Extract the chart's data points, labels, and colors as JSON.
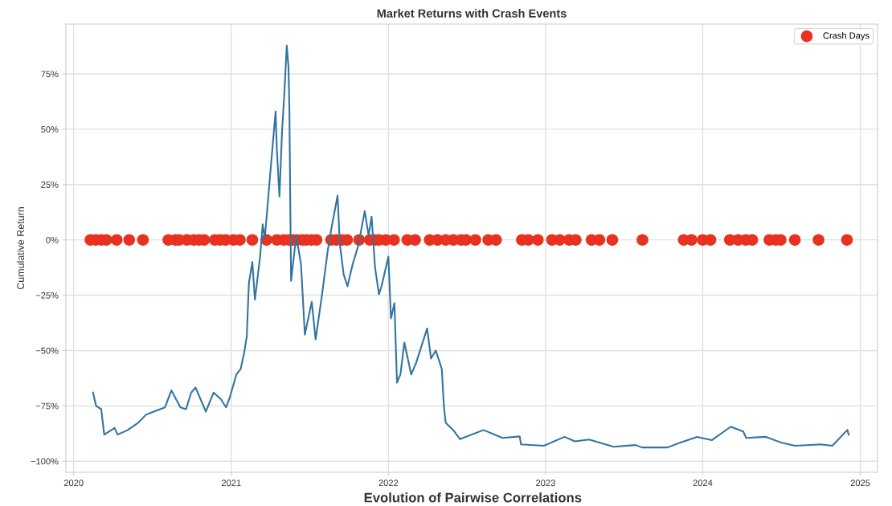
{
  "chart_data": {
    "type": "line",
    "title": "Market Returns with Crash Events",
    "ylabel": "Cumulative Return",
    "annotations": [
      "Evolution of Pairwise Correlations"
    ],
    "xlim": [
      "2019-12-14",
      "2025-02-10"
    ],
    "xticks": [
      "2020",
      "2021",
      "2022",
      "2023",
      "2024",
      "2025"
    ],
    "ylim": [
      -105,
      97.5
    ],
    "yticks": [
      {
        "value": -100,
        "label": "−100%"
      },
      {
        "value": -75,
        "label": "−75%"
      },
      {
        "value": -50,
        "label": "−50%"
      },
      {
        "value": -25,
        "label": "−25%"
      },
      {
        "value": 0,
        "label": "0%"
      },
      {
        "value": 25,
        "label": "25%"
      },
      {
        "value": 50,
        "label": "50%"
      },
      {
        "value": 75,
        "label": "75%"
      }
    ],
    "grid": true,
    "legend": "top right",
    "series": [
      {
        "color": "#3274a1",
        "marker": "none",
        "line_style": "solid",
        "x": [
          "2020-02-15",
          "2020-02-22",
          "2020-03-05",
          "2020-03-12",
          "2020-04-05",
          "2020-04-12",
          "2020-05-05",
          "2020-05-30",
          "2020-06-17",
          "2020-07-05",
          "2020-07-31",
          "2020-08-15",
          "2020-09-05",
          "2020-09-18",
          "2020-09-30",
          "2020-10-10",
          "2020-11-03",
          "2020-11-21",
          "2020-12-08",
          "2020-12-20",
          "2020-12-28",
          "2021-01-13",
          "2021-01-23",
          "2021-01-31",
          "2021-02-06",
          "2021-02-11",
          "2021-02-19",
          "2021-02-25",
          "2021-03-09",
          "2021-03-15",
          "2021-03-20",
          "2021-04-01",
          "2021-04-14",
          "2021-04-17",
          "2021-04-23",
          "2021-04-29",
          "2021-05-04",
          "2021-05-10",
          "2021-05-14",
          "2021-05-16",
          "2021-05-18",
          "2021-05-20",
          "2021-06-01",
          "2021-06-12",
          "2021-06-21",
          "2021-07-07",
          "2021-07-16",
          "2021-07-31",
          "2021-08-13",
          "2021-08-21",
          "2021-09-05",
          "2021-09-10",
          "2021-09-19",
          "2021-09-28",
          "2021-10-10",
          "2021-10-23",
          "2021-11-07",
          "2021-11-16",
          "2021-11-23",
          "2021-12-01",
          "2021-12-10",
          "2021-12-16",
          "2022-01-01",
          "2022-01-07",
          "2022-01-15",
          "2022-01-21",
          "2022-01-29",
          "2022-02-07",
          "2022-02-23",
          "2022-03-06",
          "2022-04-01",
          "2022-04-10",
          "2022-04-21",
          "2022-05-05",
          "2022-05-10",
          "2022-05-14",
          "2022-06-01",
          "2022-06-16",
          "2022-08-10",
          "2022-09-23",
          "2022-11-02",
          "2022-11-05",
          "2022-12-28",
          "2023-02-14",
          "2023-03-10",
          "2023-04-12",
          "2023-06-08",
          "2023-07-29",
          "2023-08-13",
          "2023-10-11",
          "2023-11-09",
          "2023-12-19",
          "2024-01-22",
          "2024-03-06",
          "2024-04-04",
          "2024-04-11",
          "2024-05-27",
          "2024-07-03",
          "2024-08-02",
          "2024-09-30",
          "2024-10-28",
          "2024-12-02",
          "2024-12-05"
        ],
        "values": [
          -69,
          -75,
          -76.5,
          -88,
          -85,
          -88,
          -86,
          -82.6,
          -79,
          -77.6,
          -75.7,
          -68,
          -75.7,
          -76.5,
          -69,
          -66.7,
          -77.6,
          -69,
          -72,
          -75.7,
          -71.6,
          -60.8,
          -58.3,
          -51,
          -43.8,
          -19.6,
          -10,
          -27,
          -7.6,
          7,
          0.7,
          28.6,
          58,
          40.6,
          19.6,
          49,
          65,
          87.8,
          78,
          60,
          19,
          -18.5,
          2,
          -11,
          -42.8,
          -28,
          -45,
          -24.6,
          -5,
          4.5,
          20,
          -1.3,
          -15.5,
          -21,
          -11,
          -2.7,
          13,
          2,
          10.5,
          -12.4,
          -24.6,
          -21,
          -7.6,
          -35.5,
          -28.6,
          -64.5,
          -60.8,
          -46.4,
          -60.8,
          -55.8,
          -40,
          -53.6,
          -50,
          -58.3,
          -75.4,
          -82.6,
          -86,
          -90,
          -85.9,
          -89.5,
          -88.8,
          -92.4,
          -93,
          -89,
          -91,
          -90.2,
          -93.5,
          -92.7,
          -93.8,
          -93.8,
          -91.7,
          -89,
          -90.5,
          -84.4,
          -86.6,
          -89.5,
          -89,
          -91.7,
          -93,
          -92.4,
          -93,
          -85.9,
          -88
        ]
      },
      {
        "type": "scatter",
        "name": "Crash Days",
        "color": "#e8311f",
        "marker": "circle",
        "x": [
          "2020-02-09",
          "2020-02-21",
          "2020-03-05",
          "2020-03-17",
          "2020-04-10",
          "2020-05-09",
          "2020-06-10",
          "2020-08-08",
          "2020-08-24",
          "2020-09-02",
          "2020-09-20",
          "2020-10-06",
          "2020-10-18",
          "2020-10-30",
          "2020-11-24",
          "2020-12-06",
          "2020-12-19",
          "2021-01-06",
          "2021-01-21",
          "2021-02-19",
          "2021-03-24",
          "2021-04-17",
          "2021-05-03",
          "2021-05-15",
          "2021-05-24",
          "2021-06-02",
          "2021-06-15",
          "2021-06-24",
          "2021-07-06",
          "2021-07-18",
          "2021-08-21",
          "2021-09-02",
          "2021-09-15",
          "2021-09-27",
          "2021-10-25",
          "2021-11-19",
          "2021-12-01",
          "2021-12-10",
          "2021-12-26",
          "2022-01-14",
          "2022-02-14",
          "2022-03-04",
          "2022-04-07",
          "2022-04-25",
          "2022-05-14",
          "2022-06-01",
          "2022-06-19",
          "2022-06-30",
          "2022-07-22",
          "2022-08-21",
          "2022-09-08",
          "2022-11-07",
          "2022-11-22",
          "2022-12-14",
          "2023-01-16",
          "2023-02-03",
          "2023-02-25",
          "2023-03-12",
          "2023-04-18",
          "2023-05-06",
          "2023-06-05",
          "2023-08-14",
          "2023-11-18",
          "2023-12-06",
          "2024-01-01",
          "2024-01-19",
          "2024-03-04",
          "2024-03-23",
          "2024-04-10",
          "2024-04-25",
          "2024-06-04",
          "2024-06-19",
          "2024-06-30",
          "2024-08-02",
          "2024-09-26",
          "2024-12-01"
        ],
        "values": [
          0,
          0,
          0,
          0,
          0,
          0,
          0,
          0,
          0,
          0,
          0,
          0,
          0,
          0,
          0,
          0,
          0,
          0,
          0,
          0,
          0,
          0,
          0,
          0,
          0,
          0,
          0,
          0,
          0,
          0,
          0,
          0,
          0,
          0,
          0,
          0,
          0,
          0,
          0,
          0,
          0,
          0,
          0,
          0,
          0,
          0,
          0,
          0,
          0,
          0,
          0,
          0,
          0,
          0,
          0,
          0,
          0,
          0,
          0,
          0,
          0,
          0,
          0,
          0,
          0,
          0,
          0,
          0,
          0,
          0,
          0,
          0,
          0,
          0,
          0,
          0
        ]
      }
    ]
  }
}
